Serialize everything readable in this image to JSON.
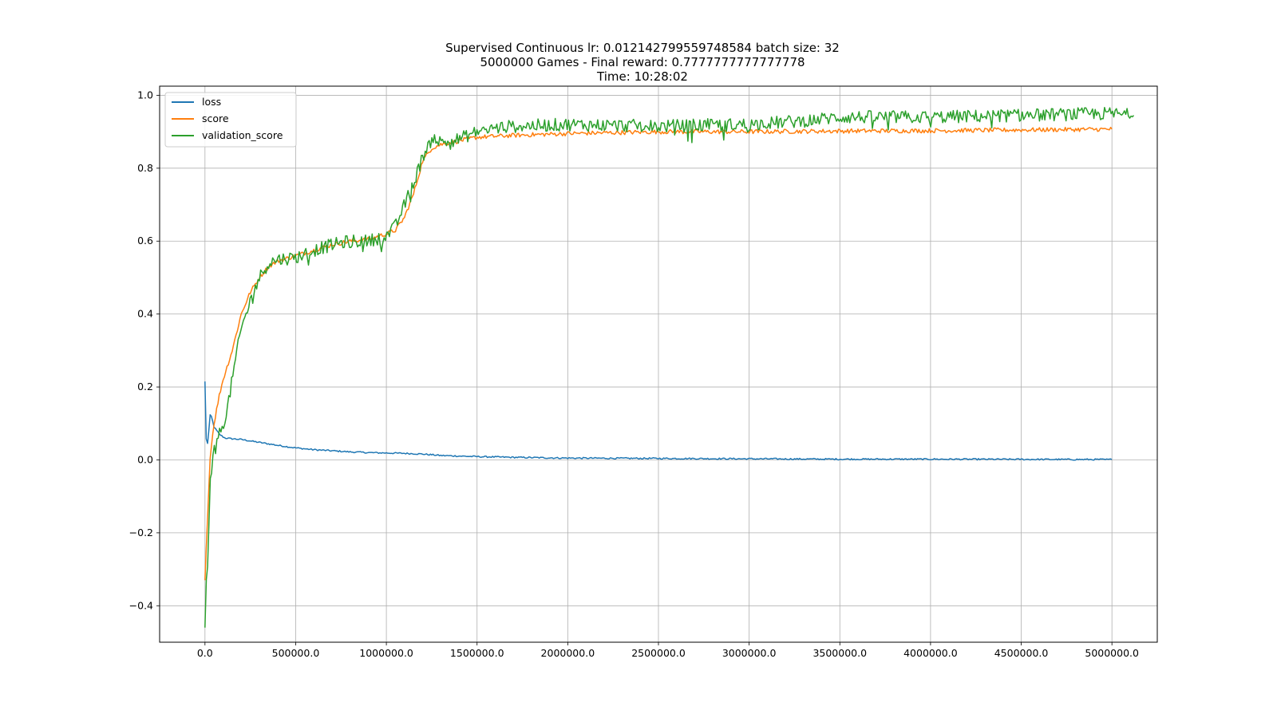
{
  "chart_data": {
    "type": "line",
    "title_lines": [
      "Supervised Continuous lr: 0.012142799559748584 batch size: 32",
      "5000000 Games - Final reward: 0.7777777777777778",
      "Time: 10:28:02"
    ],
    "xlabel": "",
    "ylabel": "",
    "xlim": [
      -250000,
      5250000
    ],
    "ylim": [
      -0.5,
      1.025
    ],
    "grid": true,
    "legend_position": "top-left",
    "x_ticks": [
      {
        "value": 0,
        "label": "0.0"
      },
      {
        "value": 500000,
        "label": "500000.0"
      },
      {
        "value": 1000000,
        "label": "1000000.0"
      },
      {
        "value": 1500000,
        "label": "1500000.0"
      },
      {
        "value": 2000000,
        "label": "2000000.0"
      },
      {
        "value": 2500000,
        "label": "2500000.0"
      },
      {
        "value": 3000000,
        "label": "3000000.0"
      },
      {
        "value": 3500000,
        "label": "3500000.0"
      },
      {
        "value": 4000000,
        "label": "4000000.0"
      },
      {
        "value": 4500000,
        "label": "4500000.0"
      },
      {
        "value": 5000000,
        "label": "5000000.0"
      }
    ],
    "y_ticks": [
      {
        "value": -0.4,
        "label": "−0.4"
      },
      {
        "value": -0.2,
        "label": "−0.2"
      },
      {
        "value": 0.0,
        "label": "0.0"
      },
      {
        "value": 0.2,
        "label": "0.2"
      },
      {
        "value": 0.4,
        "label": "0.4"
      },
      {
        "value": 0.6,
        "label": "0.6"
      },
      {
        "value": 0.8,
        "label": "0.8"
      },
      {
        "value": 1.0,
        "label": "1.0"
      }
    ],
    "series": [
      {
        "name": "loss",
        "color": "#1f77b4",
        "noise": 0.002,
        "x": [
          0,
          5000,
          15000,
          30000,
          50000,
          80000,
          110000,
          150000,
          200000,
          300000,
          400000,
          500000,
          600000,
          700000,
          800000,
          900000,
          1000000,
          1100000,
          1200000,
          1300000,
          1500000,
          1700000,
          2000000,
          2500000,
          3000000,
          3500000,
          4000000,
          4500000,
          5000000
        ],
        "y": [
          0.215,
          0.06,
          0.045,
          0.13,
          0.09,
          0.07,
          0.06,
          0.058,
          0.056,
          0.048,
          0.04,
          0.033,
          0.028,
          0.025,
          0.022,
          0.02,
          0.019,
          0.018,
          0.016,
          0.012,
          0.009,
          0.007,
          0.005,
          0.004,
          0.003,
          0.002,
          0.002,
          0.0015,
          0.001
        ]
      },
      {
        "name": "score",
        "color": "#ff7f0e",
        "noise": 0.006,
        "x": [
          0,
          10000,
          30000,
          50000,
          80000,
          100000,
          150000,
          200000,
          250000,
          300000,
          350000,
          400000,
          500000,
          600000,
          700000,
          800000,
          900000,
          1000000,
          1050000,
          1100000,
          1150000,
          1200000,
          1250000,
          1300000,
          1400000,
          1500000,
          1700000,
          2000000,
          2500000,
          3000000,
          3500000,
          4000000,
          4500000,
          5000000
        ],
        "y": [
          -0.33,
          -0.2,
          0.02,
          0.1,
          0.18,
          0.22,
          0.3,
          0.4,
          0.46,
          0.5,
          0.53,
          0.545,
          0.56,
          0.575,
          0.59,
          0.6,
          0.605,
          0.62,
          0.63,
          0.665,
          0.73,
          0.82,
          0.855,
          0.865,
          0.875,
          0.885,
          0.89,
          0.895,
          0.9,
          0.9,
          0.902,
          0.903,
          0.905,
          0.907
        ]
      },
      {
        "name": "validation_score",
        "color": "#2ca02c",
        "noise": 0.018,
        "x": [
          0,
          5000,
          15000,
          30000,
          50000,
          80000,
          120000,
          160000,
          200000,
          260000,
          300000,
          350000,
          400000,
          500000,
          600000,
          700000,
          800000,
          900000,
          1000000,
          1050000,
          1100000,
          1150000,
          1200000,
          1250000,
          1300000,
          1400000,
          1500000,
          1600000,
          1700000,
          2000000,
          2500000,
          3000000,
          3300000,
          3500000,
          4000000,
          4500000,
          5000000,
          5120000
        ],
        "y": [
          -0.46,
          -0.35,
          -0.3,
          -0.05,
          0.02,
          0.07,
          0.13,
          0.25,
          0.36,
          0.45,
          0.5,
          0.54,
          0.55,
          0.555,
          0.575,
          0.59,
          0.6,
          0.6,
          0.615,
          0.64,
          0.7,
          0.76,
          0.83,
          0.89,
          0.87,
          0.88,
          0.9,
          0.91,
          0.915,
          0.92,
          0.915,
          0.92,
          0.93,
          0.94,
          0.94,
          0.945,
          0.95,
          0.945
        ]
      }
    ]
  }
}
